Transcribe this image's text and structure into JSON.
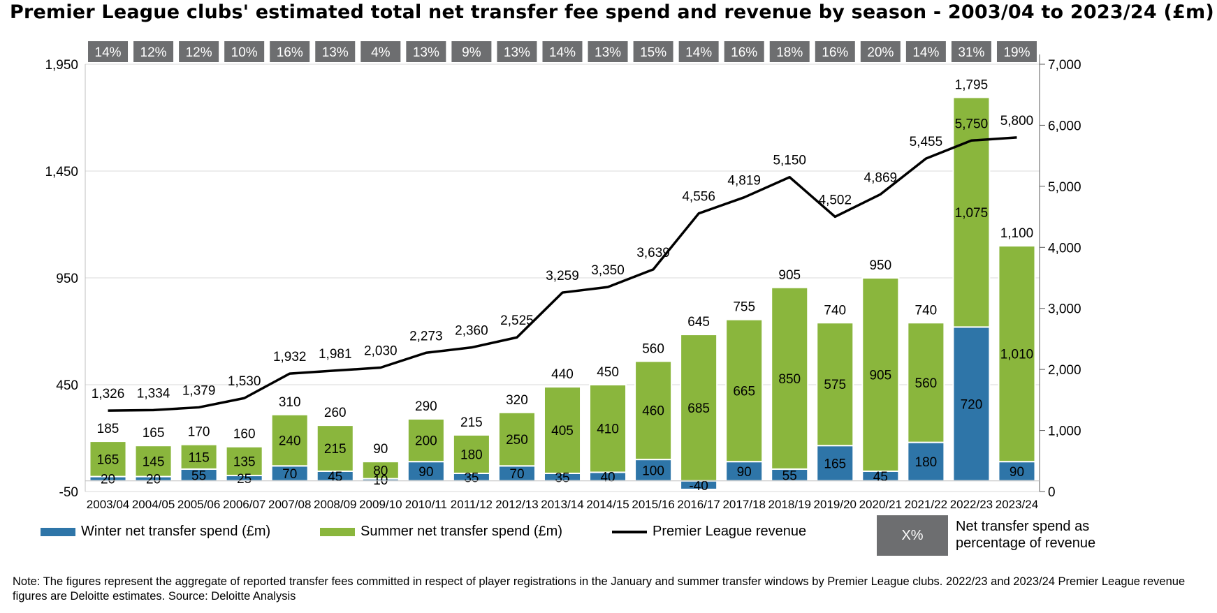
{
  "chart_data": {
    "type": "bar",
    "title": "Premier League clubs' estimated total net transfer fee spend and revenue by season - 2003/04 to 2023/24 (£m)",
    "categories": [
      "2003/04",
      "2004/05",
      "2005/06",
      "2006/07",
      "2007/08",
      "2008/09",
      "2009/10",
      "2010/11",
      "2011/12",
      "2012/13",
      "2013/14",
      "2014/15",
      "2015/16",
      "2016/17",
      "2017/18",
      "2018/19",
      "2019/20",
      "2020/21",
      "2021/22",
      "2022/23",
      "2023/24"
    ],
    "stacked": true,
    "series": [
      {
        "name": "Winter net transfer spend (£m)",
        "axis": "left",
        "color": "#2e75a8",
        "values": [
          20,
          20,
          55,
          25,
          70,
          45,
          10,
          90,
          35,
          70,
          35,
          40,
          100,
          -40,
          90,
          55,
          165,
          45,
          180,
          720,
          90
        ]
      },
      {
        "name": "Summer net transfer spend (£m)",
        "axis": "left",
        "color": "#8ab63d",
        "values": [
          165,
          145,
          115,
          135,
          240,
          215,
          80,
          200,
          180,
          250,
          405,
          410,
          460,
          685,
          665,
          850,
          575,
          905,
          560,
          1075,
          1010
        ]
      },
      {
        "name": "Premier League revenue",
        "axis": "right",
        "type": "line",
        "color": "#000000",
        "values": [
          1326,
          1334,
          1379,
          1530,
          1932,
          1981,
          2030,
          2273,
          2360,
          2525,
          3259,
          3350,
          3639,
          4556,
          4819,
          5150,
          4502,
          4869,
          5455,
          5750,
          5800
        ]
      }
    ],
    "totals": [
      185,
      165,
      170,
      160,
      310,
      260,
      90,
      290,
      215,
      320,
      440,
      450,
      560,
      645,
      755,
      905,
      740,
      950,
      740,
      1795,
      1100
    ],
    "percent_of_revenue": [
      "14%",
      "12%",
      "12%",
      "10%",
      "16%",
      "13%",
      "4%",
      "13%",
      "9%",
      "13%",
      "14%",
      "13%",
      "15%",
      "14%",
      "16%",
      "18%",
      "16%",
      "20%",
      "14%",
      "31%",
      "19%"
    ],
    "left_axis": {
      "ylim": [
        -50,
        1950
      ],
      "ticks": [
        "1,950",
        "1,450",
        "950",
        "450",
        "-50"
      ],
      "tick_values": [
        1950,
        1450,
        950,
        450,
        -50
      ]
    },
    "right_axis": {
      "ylim": [
        0,
        7000
      ],
      "ticks": [
        "7,000",
        "6,000",
        "5,000",
        "4,000",
        "3,000",
        "2,000",
        "1,000",
        "0"
      ],
      "tick_values": [
        7000,
        6000,
        5000,
        4000,
        3000,
        2000,
        1000,
        0
      ]
    },
    "grid": true,
    "legend_position": "bottom"
  },
  "labels": {
    "winter_display": [
      "20",
      "20",
      "55",
      "25",
      "70",
      "45",
      "10",
      "90",
      "35",
      "70",
      "35",
      "40",
      "100",
      "-40",
      "90",
      "55",
      "165",
      "45",
      "180",
      "720",
      "90"
    ],
    "summer_display": [
      "165",
      "145",
      "115",
      "135",
      "240",
      "215",
      "80",
      "200",
      "180",
      "250",
      "405",
      "410",
      "460",
      "685",
      "665",
      "850",
      "575",
      "905",
      "560",
      "1,075",
      "1,010"
    ],
    "total_display": [
      "185",
      "165",
      "170",
      "160",
      "310",
      "260",
      "90",
      "290",
      "215",
      "320",
      "440",
      "450",
      "560",
      "645",
      "755",
      "905",
      "740",
      "950",
      "740",
      "1,795",
      "1,100"
    ],
    "revenue_display": [
      "1,326",
      "1,334",
      "1,379",
      "1,530",
      "1,932",
      "1,981",
      "2,030",
      "2,273",
      "2,360",
      "2,525",
      "3,259",
      "3,350",
      "3,639",
      "4,556",
      "4,819",
      "5,150",
      "4,502",
      "4,869",
      "5,455",
      "5,750",
      "5,800"
    ]
  },
  "legend": {
    "winter": "Winter net transfer spend (£m)",
    "summer": "Summer net transfer spend (£m)",
    "revenue": "Premier League revenue",
    "pct_symbol": "X%",
    "pct_desc": "Net transfer spend as percentage of revenue"
  },
  "note": "Note: The figures represent the aggregate of reported transfer fees committed in respect of player registrations in the January and summer transfer windows by Premier League clubs. 2022/23 and 2023/24 Premier League revenue figures are Deloitte estimates. Source: Deloitte Analysis",
  "colors": {
    "winter": "#2e75a8",
    "summer": "#8ab63d",
    "line": "#000000",
    "pct_box": "#6d6e70",
    "grid": "#d9d9d9"
  }
}
